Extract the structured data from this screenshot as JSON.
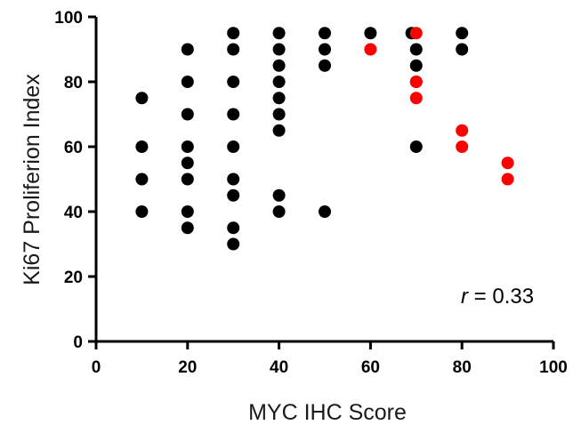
{
  "chart_data": {
    "type": "scatter",
    "title": "",
    "xlabel": "MYC IHC Score",
    "ylabel": "Ki67 Proliferion Index",
    "xlim": [
      0,
      100
    ],
    "ylim": [
      0,
      100
    ],
    "x_ticks": [
      0,
      20,
      40,
      60,
      80,
      100
    ],
    "y_ticks": [
      0,
      20,
      40,
      60,
      80,
      100
    ],
    "grid": false,
    "annotation": {
      "var": "r",
      "text": " = 0.33"
    },
    "series": [
      {
        "color": "#000000",
        "points": [
          [
            10,
            75
          ],
          [
            10,
            60
          ],
          [
            10,
            50
          ],
          [
            10,
            40
          ],
          [
            20,
            90
          ],
          [
            20,
            80
          ],
          [
            20,
            70
          ],
          [
            20,
            60
          ],
          [
            20,
            55
          ],
          [
            20,
            50
          ],
          [
            20,
            40
          ],
          [
            20,
            35
          ],
          [
            30,
            95
          ],
          [
            30,
            90
          ],
          [
            30,
            80
          ],
          [
            30,
            70
          ],
          [
            30,
            60
          ],
          [
            30,
            50
          ],
          [
            30,
            45
          ],
          [
            30,
            35
          ],
          [
            30,
            30
          ],
          [
            40,
            95
          ],
          [
            40,
            90
          ],
          [
            40,
            85
          ],
          [
            40,
            80
          ],
          [
            40,
            75
          ],
          [
            40,
            70
          ],
          [
            40,
            65
          ],
          [
            40,
            45
          ],
          [
            40,
            40
          ],
          [
            50,
            95
          ],
          [
            50,
            90
          ],
          [
            50,
            85
          ],
          [
            50,
            40
          ],
          [
            60,
            95
          ],
          [
            69,
            95
          ],
          [
            70,
            90
          ],
          [
            70,
            85
          ],
          [
            70,
            80
          ],
          [
            70,
            60
          ],
          [
            80,
            95
          ],
          [
            80,
            90
          ]
        ]
      },
      {
        "color": "#ff0000",
        "points": [
          [
            60,
            90
          ],
          [
            70,
            95
          ],
          [
            70,
            80
          ],
          [
            70,
            75
          ],
          [
            80,
            65
          ],
          [
            80,
            60
          ],
          [
            90,
            55
          ],
          [
            90,
            50
          ]
        ]
      }
    ]
  }
}
